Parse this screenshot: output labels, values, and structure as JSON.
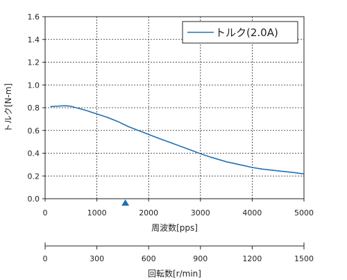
{
  "chart_data": {
    "type": "line",
    "ylabel": "トルク[N-m]",
    "xlabel": "周波数[pps]",
    "x2label": "回転数[r/min]",
    "xlim": [
      0,
      5000
    ],
    "ylim": [
      0,
      1.6
    ],
    "x2lim": [
      0,
      1500
    ],
    "grid": true,
    "legend_position": "top-right",
    "x_ticks": [
      0,
      1000,
      2000,
      3000,
      4000,
      5000
    ],
    "x_tick_labels": [
      "0",
      "1000",
      "2000",
      "3000",
      "4000",
      "5000"
    ],
    "y_ticks": [
      0,
      0.2,
      0.4,
      0.6,
      0.8,
      1.0,
      1.2,
      1.4,
      1.6
    ],
    "y_tick_labels": [
      "0.0",
      "0.2",
      "0.4",
      "0.6",
      "0.8",
      "1.0",
      "1.2",
      "1.4",
      "1.6"
    ],
    "x2_ticks": [
      0,
      300,
      600,
      900,
      1200,
      1500
    ],
    "x2_tick_labels": [
      "0",
      "300",
      "600",
      "900",
      "1200",
      "1500"
    ],
    "marker_x": 1550,
    "colors": {
      "series": "#1f6fb5",
      "marker": "#1f6fb5"
    },
    "series": [
      {
        "name": "トルク(2.0A)",
        "x": [
          100,
          200,
          300,
          400,
          500,
          600,
          700,
          800,
          900,
          1000,
          1200,
          1400,
          1600,
          1800,
          2000,
          2200,
          2500,
          2800,
          3000,
          3200,
          3500,
          3800,
          4000,
          4200,
          4500,
          4800,
          5000
        ],
        "y": [
          0.81,
          0.812,
          0.815,
          0.817,
          0.812,
          0.8,
          0.788,
          0.775,
          0.76,
          0.745,
          0.715,
          0.68,
          0.635,
          0.6,
          0.565,
          0.53,
          0.48,
          0.43,
          0.395,
          0.365,
          0.325,
          0.295,
          0.275,
          0.26,
          0.245,
          0.23,
          0.218
        ]
      }
    ]
  }
}
